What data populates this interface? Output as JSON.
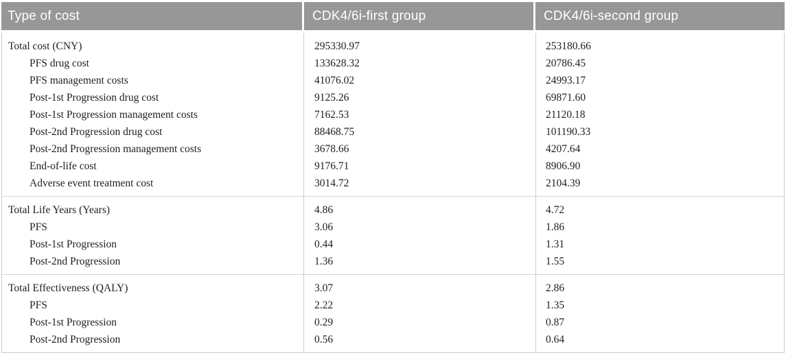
{
  "table": {
    "columns": [
      "Type of cost",
      "CDK4/6i-first group",
      "CDK4/6i-second group"
    ],
    "sections": [
      {
        "name": "costs",
        "rows": [
          {
            "label": "Total cost (CNY)",
            "indent": false,
            "values": [
              "295330.97",
              "253180.66"
            ]
          },
          {
            "label": "PFS drug cost",
            "indent": true,
            "values": [
              "133628.32",
              "20786.45"
            ]
          },
          {
            "label": "PFS management costs",
            "indent": true,
            "values": [
              "41076.02",
              "24993.17"
            ]
          },
          {
            "label": "Post-1st Progression drug cost",
            "indent": true,
            "values": [
              "9125.26",
              "69871.60"
            ]
          },
          {
            "label": "Post-1st Progression management costs",
            "indent": true,
            "values": [
              "7162.53",
              "21120.18"
            ]
          },
          {
            "label": "Post-2nd Progression drug cost",
            "indent": true,
            "values": [
              "88468.75",
              "101190.33"
            ]
          },
          {
            "label": "Post-2nd Progression management costs",
            "indent": true,
            "values": [
              "3678.66",
              "4207.64"
            ]
          },
          {
            "label": "End-of-life cost",
            "indent": true,
            "values": [
              "9176.71",
              "8906.90"
            ]
          },
          {
            "label": "Adverse event treatment cost",
            "indent": true,
            "values": [
              "3014.72",
              "2104.39"
            ]
          }
        ]
      },
      {
        "name": "life-years",
        "rows": [
          {
            "label": "Total Life Years (Years)",
            "indent": false,
            "values": [
              "4.86",
              "4.72"
            ]
          },
          {
            "label": "PFS",
            "indent": true,
            "values": [
              "3.06",
              "1.86"
            ]
          },
          {
            "label": "Post-1st Progression",
            "indent": true,
            "values": [
              "0.44",
              "1.31"
            ]
          },
          {
            "label": "Post-2nd Progression",
            "indent": true,
            "values": [
              "1.36",
              "1.55"
            ]
          }
        ]
      },
      {
        "name": "effectiveness",
        "rows": [
          {
            "label": "Total Effectiveness (QALY)",
            "indent": false,
            "values": [
              "3.07",
              "2.86"
            ]
          },
          {
            "label": "PFS",
            "indent": true,
            "values": [
              "2.22",
              "1.35"
            ]
          },
          {
            "label": "Post-1st Progression",
            "indent": true,
            "values": [
              "0.29",
              "0.87"
            ]
          },
          {
            "label": "Post-2nd Progression",
            "indent": true,
            "values": [
              "0.56",
              "0.64"
            ]
          }
        ]
      }
    ]
  },
  "colors": {
    "header_bg": "#979797",
    "header_text": "#ffffff",
    "body_text": "#1e1e1e",
    "border": "#cbcbcb"
  }
}
